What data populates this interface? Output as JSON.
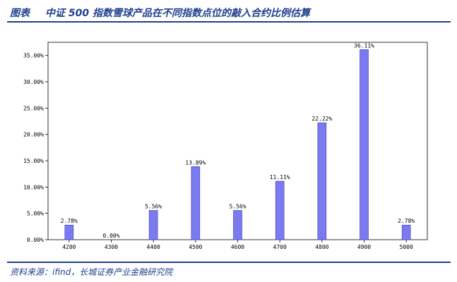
{
  "header": {
    "tag": "图表",
    "title": "中证 500 指数雪球产品在不同指数点位的敲入合约比例估算"
  },
  "footer": {
    "source": "资料来源：ifind，长城证券产业金融研究院"
  },
  "chart_data": {
    "type": "bar",
    "title": "",
    "xlabel": "",
    "ylabel": "",
    "categories": [
      "4200",
      "4300",
      "4400",
      "4500",
      "4600",
      "4700",
      "4800",
      "4900",
      "5000"
    ],
    "values": [
      2.78,
      0.0,
      5.56,
      13.89,
      5.56,
      11.11,
      22.22,
      36.11,
      2.78
    ],
    "data_labels": [
      "2.78%",
      "0.00%",
      "5.56%",
      "13.89%",
      "5.56%",
      "11.11%",
      "22.22%",
      "36.11%",
      "2.78%"
    ],
    "ylim": [
      0,
      37.5
    ],
    "yticks": [
      0,
      5,
      10,
      15,
      20,
      25,
      30,
      35
    ],
    "ytick_labels": [
      "0.00%",
      "5.00%",
      "10.00%",
      "15.00%",
      "20.00%",
      "25.00%",
      "30.00%",
      "35.00%"
    ],
    "bar_color": "#7b7bf0",
    "bar_edge_color": "#3a3ab8",
    "grid": false,
    "legend": "none"
  }
}
